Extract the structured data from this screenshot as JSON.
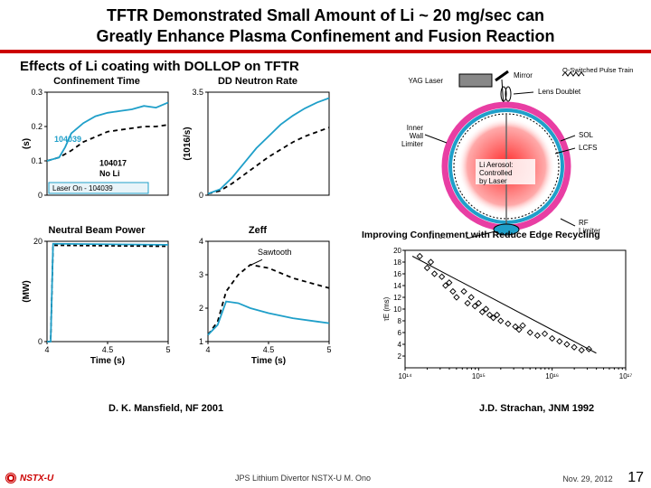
{
  "title_line1": "TFTR Demonstrated Small Amount of Li ~ 20 mg/sec can",
  "title_line2": "Greatly Enhance Plasma Confinement and Fusion Reaction",
  "subtitle": "Effects of Li coating with DOLLOP on TFTR",
  "charts": {
    "confinement": {
      "title": "Confinement Time",
      "ylabel": "(s)",
      "ylim": [
        0,
        0.3
      ],
      "yticks": [
        0.0,
        0.1,
        0.2,
        0.3
      ],
      "xlim": [
        4.0,
        5.0
      ],
      "series_li": {
        "color": "#1f9fc9",
        "label": "104039",
        "x": [
          4.0,
          4.1,
          4.15,
          4.2,
          4.3,
          4.4,
          4.5,
          4.6,
          4.7,
          4.8,
          4.9,
          5.0
        ],
        "y": [
          0.1,
          0.11,
          0.14,
          0.18,
          0.21,
          0.23,
          0.24,
          0.245,
          0.25,
          0.26,
          0.255,
          0.27
        ]
      },
      "series_noli": {
        "color": "#000000",
        "label": "104017 No Li",
        "dash": "5,4",
        "x": [
          4.0,
          4.1,
          4.2,
          4.3,
          4.4,
          4.5,
          4.6,
          4.7,
          4.8,
          4.9,
          5.0
        ],
        "y": [
          0.1,
          0.11,
          0.13,
          0.155,
          0.17,
          0.185,
          0.19,
          0.195,
          0.2,
          0.2,
          0.205
        ]
      },
      "laser_label": "Laser On - 104039"
    },
    "neutron": {
      "title": "DD Neutron Rate",
      "ylabel": "(1016/s)",
      "ylim": [
        0,
        3.5
      ],
      "yticks": [
        0,
        3.5
      ],
      "xlim": [
        4.0,
        5.0
      ],
      "series_li": {
        "color": "#1f9fc9",
        "x": [
          4.0,
          4.1,
          4.2,
          4.3,
          4.4,
          4.5,
          4.6,
          4.7,
          4.8,
          4.9,
          5.0
        ],
        "y": [
          0.05,
          0.2,
          0.6,
          1.1,
          1.6,
          2.0,
          2.4,
          2.7,
          2.95,
          3.15,
          3.3
        ]
      },
      "series_noli": {
        "color": "#000000",
        "dash": "5,4",
        "x": [
          4.0,
          4.1,
          4.2,
          4.3,
          4.4,
          4.5,
          4.6,
          4.7,
          4.8,
          4.9,
          5.0
        ],
        "y": [
          0.05,
          0.15,
          0.4,
          0.7,
          1.0,
          1.3,
          1.55,
          1.8,
          2.0,
          2.15,
          2.3
        ]
      }
    },
    "beam": {
      "title": "Neutral Beam Power",
      "ylabel": "(MW)",
      "ylim": [
        0,
        20
      ],
      "yticks": [
        0,
        20
      ],
      "xlim": [
        4.0,
        5.0
      ],
      "xticks": [
        4.0,
        4.5,
        5.0
      ],
      "xlabel": "Time (s)",
      "series_li": {
        "color": "#1f9fc9",
        "x": [
          4.0,
          4.03,
          4.05,
          4.07,
          5.0
        ],
        "y": [
          0,
          0,
          19.5,
          19.5,
          19.3
        ]
      },
      "series_noli": {
        "color": "#000000",
        "dash": "4,3",
        "x": [
          4.0,
          4.03,
          4.05,
          4.07,
          5.0
        ],
        "y": [
          0,
          0,
          19.2,
          19.2,
          19.0
        ]
      }
    },
    "zeff": {
      "title": "Zeff",
      "ylim": [
        1,
        4
      ],
      "yticks": [
        1,
        2,
        3,
        4
      ],
      "xlim": [
        4.0,
        5.0
      ],
      "xticks": [
        4.0,
        4.5,
        5.0
      ],
      "xlabel": "Time (s)",
      "sawtooth_label": "Sawtooth",
      "series_li": {
        "color": "#1f9fc9",
        "x": [
          4.0,
          4.08,
          4.15,
          4.25,
          4.35,
          4.5,
          4.7,
          4.9,
          5.0
        ],
        "y": [
          1.2,
          1.5,
          2.2,
          2.15,
          2.0,
          1.85,
          1.7,
          1.6,
          1.55
        ]
      },
      "series_noli": {
        "color": "#000000",
        "dash": "5,4",
        "x": [
          4.0,
          4.08,
          4.15,
          4.25,
          4.35,
          4.5,
          4.7,
          4.9,
          5.0
        ],
        "y": [
          1.2,
          1.6,
          2.5,
          3.0,
          3.3,
          3.2,
          2.9,
          2.7,
          2.6
        ]
      }
    },
    "diagram": {
      "labels": {
        "pulse": "Q-Switched Pulse Train",
        "yag": "YAG Laser",
        "mirror": "Mirror",
        "lens": "Lens Doublet",
        "wall": "Inner Wall Limiter",
        "sol": "SOL",
        "lcfs": "LCFS",
        "aerosol": "Li Aerosol: Controlled by Laser",
        "molten": "Molten Lithium",
        "rf": "RF Limiter"
      },
      "plasma_color": "#ff2a2a",
      "ring_color": "#1f9fc9",
      "magenta": "#e83ea3"
    },
    "scatter": {
      "caption": "Improving Confinement with Reduce Edge Recycling",
      "xlabel_ticks": [
        "10¹⁴",
        "10¹⁵",
        "10¹⁶",
        "10¹⁷"
      ],
      "yticks": [
        2,
        4,
        6,
        8,
        10,
        12,
        14,
        16,
        18,
        20
      ],
      "xlog": true,
      "xlim": [
        0,
        3
      ],
      "ylim": [
        0,
        20
      ],
      "points": [
        [
          0.2,
          19
        ],
        [
          0.3,
          17
        ],
        [
          0.35,
          18
        ],
        [
          0.4,
          16
        ],
        [
          0.5,
          15.5
        ],
        [
          0.55,
          14
        ],
        [
          0.6,
          14.5
        ],
        [
          0.65,
          13
        ],
        [
          0.7,
          12
        ],
        [
          0.8,
          13
        ],
        [
          0.85,
          11
        ],
        [
          0.9,
          12
        ],
        [
          0.95,
          10.5
        ],
        [
          1.0,
          11
        ],
        [
          1.05,
          9.5
        ],
        [
          1.1,
          10
        ],
        [
          1.15,
          9
        ],
        [
          1.2,
          8.5
        ],
        [
          1.25,
          9
        ],
        [
          1.3,
          8
        ],
        [
          1.4,
          7.5
        ],
        [
          1.5,
          7
        ],
        [
          1.55,
          6.5
        ],
        [
          1.6,
          7.2
        ],
        [
          1.7,
          6
        ],
        [
          1.8,
          5.5
        ],
        [
          1.9,
          5.8
        ],
        [
          2.0,
          5
        ],
        [
          2.1,
          4.5
        ],
        [
          2.2,
          4
        ],
        [
          2.3,
          3.5
        ],
        [
          2.4,
          3
        ],
        [
          2.5,
          3.2
        ]
      ]
    }
  },
  "citations": {
    "left": "D. K. Mansfield, NF 2001",
    "right": "J.D. Strachan, JNM 1992"
  },
  "footer": {
    "brand": "NSTX-U",
    "center": "JPS Lithium Divertor NSTX-U M. Ono",
    "date": "Nov. 29, 2012",
    "page": "17"
  }
}
